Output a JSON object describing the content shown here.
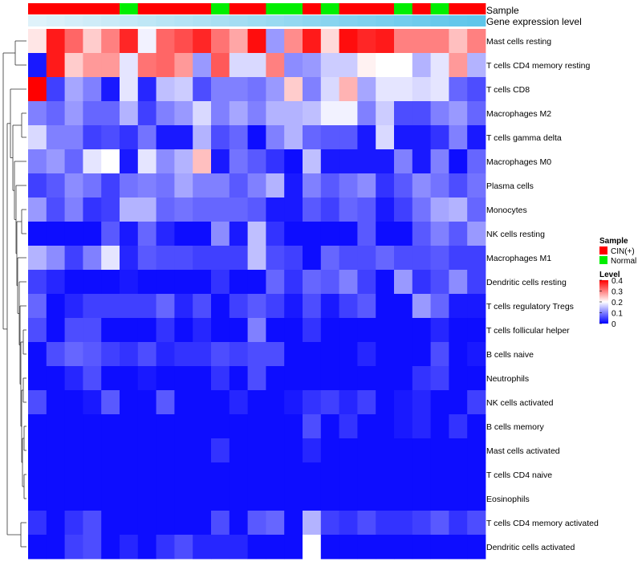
{
  "chart_data": {
    "type": "heatmap",
    "annotation_titles": {
      "sample": "Sample",
      "expression": "Gene expression level"
    },
    "columns": {
      "sample": [
        "CIN(+)",
        "CIN(+)",
        "CIN(+)",
        "CIN(+)",
        "CIN(+)",
        "Normal",
        "CIN(+)",
        "CIN(+)",
        "CIN(+)",
        "CIN(+)",
        "Normal",
        "CIN(+)",
        "CIN(+)",
        "Normal",
        "Normal",
        "CIN(+)",
        "Normal",
        "CIN(+)",
        "CIN(+)",
        "CIN(+)",
        "Normal",
        "CIN(+)",
        "Normal",
        "CIN(+)",
        "CIN(+)"
      ],
      "expression": [
        0.05,
        0.09,
        0.13,
        0.17,
        0.21,
        0.25,
        0.29,
        0.33,
        0.37,
        0.41,
        0.45,
        0.49,
        0.53,
        0.57,
        0.61,
        0.65,
        0.69,
        0.73,
        0.77,
        0.81,
        0.85,
        0.89,
        0.93,
        0.97,
        1.0
      ]
    },
    "rows": [
      "Mast cells resting",
      "T cells CD4 memory resting",
      "T cells CD8",
      "Macrophages M2",
      "T cells gamma delta",
      "Macrophages M0",
      "Plasma cells",
      "Monocytes",
      "NK cells resting",
      "Macrophages M1",
      "Dendritic cells resting",
      "T cells regulatory  Tregs",
      "T cells follicular helper",
      "B cells naive",
      "Neutrophils",
      "NK cells activated",
      "B cells memory",
      "Mast cells activated",
      "T cells CD4 naive",
      "Eosinophils",
      "T cells CD4 memory activated",
      "Dendritic cells activated"
    ],
    "values": [
      [
        0.22,
        0.38,
        0.32,
        0.24,
        0.3,
        0.37,
        0.19,
        0.32,
        0.34,
        0.37,
        0.31,
        0.27,
        0.39,
        0.12,
        0.29,
        0.38,
        0.23,
        0.39,
        0.37,
        0.38,
        0.3,
        0.3,
        0.3,
        0.25,
        0.3
      ],
      [
        0.02,
        0.38,
        0.24,
        0.28,
        0.28,
        0.18,
        0.31,
        0.32,
        0.28,
        0.12,
        0.33,
        0.17,
        0.17,
        0.3,
        0.11,
        0.12,
        0.16,
        0.16,
        0.21,
        0.2,
        0.2,
        0.14,
        0.18,
        0.28,
        0.14
      ],
      [
        0.4,
        0.05,
        0.13,
        0.1,
        0.02,
        0.18,
        0.03,
        0.15,
        0.16,
        0.06,
        0.1,
        0.1,
        0.09,
        0.12,
        0.24,
        0.1,
        0.17,
        0.26,
        0.13,
        0.18,
        0.18,
        0.17,
        0.18,
        0.08,
        0.06
      ],
      [
        0.1,
        0.08,
        0.12,
        0.08,
        0.08,
        0.14,
        0.05,
        0.1,
        0.12,
        0.17,
        0.1,
        0.13,
        0.1,
        0.14,
        0.14,
        0.15,
        0.19,
        0.19,
        0.1,
        0.16,
        0.06,
        0.06,
        0.1,
        0.12,
        0.08
      ],
      [
        0.17,
        0.1,
        0.1,
        0.05,
        0.06,
        0.04,
        0.09,
        0.02,
        0.02,
        0.14,
        0.06,
        0.08,
        0.01,
        0.1,
        0.14,
        0.08,
        0.07,
        0.07,
        0.02,
        0.17,
        0.02,
        0.02,
        0.04,
        0.1,
        0.02
      ],
      [
        0.1,
        0.12,
        0.08,
        0.18,
        0.2,
        0.02,
        0.18,
        0.11,
        0.14,
        0.25,
        0.02,
        0.09,
        0.07,
        0.04,
        0.01,
        0.15,
        0.02,
        0.02,
        0.02,
        0.02,
        0.1,
        0.02,
        0.1,
        0.01,
        0.08
      ],
      [
        0.05,
        0.07,
        0.11,
        0.09,
        0.05,
        0.09,
        0.1,
        0.09,
        0.13,
        0.1,
        0.1,
        0.07,
        0.1,
        0.14,
        0.02,
        0.1,
        0.07,
        0.09,
        0.11,
        0.04,
        0.07,
        0.11,
        0.09,
        0.06,
        0.09
      ],
      [
        0.12,
        0.06,
        0.1,
        0.04,
        0.05,
        0.14,
        0.14,
        0.08,
        0.09,
        0.08,
        0.08,
        0.08,
        0.07,
        0.02,
        0.02,
        0.07,
        0.05,
        0.08,
        0.07,
        0.02,
        0.05,
        0.09,
        0.13,
        0.14,
        0.08
      ],
      [
        0.01,
        0.01,
        0.01,
        0.01,
        0.07,
        0.02,
        0.08,
        0.03,
        0.01,
        0.01,
        0.11,
        0.02,
        0.15,
        0.04,
        0.01,
        0.01,
        0.01,
        0.01,
        0.07,
        0.01,
        0.01,
        0.07,
        0.1,
        0.07,
        0.12
      ],
      [
        0.14,
        0.11,
        0.05,
        0.1,
        0.18,
        0.03,
        0.07,
        0.06,
        0.06,
        0.05,
        0.05,
        0.05,
        0.15,
        0.06,
        0.05,
        0.01,
        0.08,
        0.06,
        0.06,
        0.08,
        0.06,
        0.06,
        0.07,
        0.05,
        0.05
      ],
      [
        0.05,
        0.03,
        0.01,
        0.01,
        0.01,
        0.02,
        0.01,
        0.01,
        0.01,
        0.01,
        0.04,
        0.01,
        0.01,
        0.08,
        0.04,
        0.08,
        0.07,
        0.1,
        0.05,
        0.01,
        0.12,
        0.04,
        0.06,
        0.11,
        0.05
      ],
      [
        0.08,
        0.01,
        0.03,
        0.05,
        0.05,
        0.05,
        0.05,
        0.08,
        0.03,
        0.06,
        0.01,
        0.05,
        0.07,
        0.05,
        0.02,
        0.06,
        0.02,
        0.05,
        0.07,
        0.01,
        0.01,
        0.12,
        0.08,
        0.02,
        0.02
      ],
      [
        0.06,
        0.01,
        0.06,
        0.06,
        0.01,
        0.01,
        0.01,
        0.04,
        0.01,
        0.03,
        0.01,
        0.01,
        0.1,
        0.01,
        0.01,
        0.04,
        0.01,
        0.01,
        0.01,
        0.01,
        0.01,
        0.01,
        0.03,
        0.01,
        0.01
      ],
      [
        0.01,
        0.06,
        0.08,
        0.07,
        0.05,
        0.04,
        0.06,
        0.03,
        0.04,
        0.04,
        0.06,
        0.05,
        0.06,
        0.06,
        0.01,
        0.01,
        0.01,
        0.01,
        0.03,
        0.01,
        0.01,
        0.01,
        0.06,
        0.01,
        0.02
      ],
      [
        0.01,
        0.01,
        0.03,
        0.06,
        0.01,
        0.01,
        0.02,
        0.01,
        0.01,
        0.01,
        0.04,
        0.01,
        0.06,
        0.01,
        0.01,
        0.01,
        0.01,
        0.01,
        0.01,
        0.01,
        0.01,
        0.04,
        0.05,
        0.01,
        0.01
      ],
      [
        0.06,
        0.01,
        0.01,
        0.02,
        0.07,
        0.01,
        0.01,
        0.07,
        0.01,
        0.01,
        0.01,
        0.03,
        0.01,
        0.01,
        0.02,
        0.04,
        0.05,
        0.03,
        0.05,
        0.01,
        0.02,
        0.03,
        0.01,
        0.01,
        0.05
      ],
      [
        0.01,
        0.01,
        0.01,
        0.01,
        0.01,
        0.01,
        0.01,
        0.01,
        0.01,
        0.01,
        0.01,
        0.01,
        0.01,
        0.01,
        0.01,
        0.06,
        0.01,
        0.04,
        0.01,
        0.01,
        0.02,
        0.03,
        0.01,
        0.04,
        0.01
      ],
      [
        0.01,
        0.01,
        0.01,
        0.01,
        0.01,
        0.01,
        0.01,
        0.01,
        0.01,
        0.01,
        0.04,
        0.01,
        0.01,
        0.01,
        0.01,
        0.03,
        0.01,
        0.01,
        0.01,
        0.01,
        0.01,
        0.01,
        0.01,
        0.01,
        0.01
      ],
      [
        0.01,
        0.01,
        0.01,
        0.01,
        0.01,
        0.01,
        0.01,
        0.01,
        0.01,
        0.01,
        0.01,
        0.01,
        0.01,
        0.01,
        0.01,
        0.01,
        0.01,
        0.01,
        0.01,
        0.01,
        0.01,
        0.01,
        0.01,
        0.01,
        0.01
      ],
      [
        0.01,
        0.01,
        0.01,
        0.01,
        0.01,
        0.01,
        0.01,
        0.01,
        0.01,
        0.01,
        0.01,
        0.01,
        0.01,
        0.01,
        0.01,
        0.01,
        0.01,
        0.01,
        0.01,
        0.01,
        0.01,
        0.01,
        0.01,
        0.01,
        0.01
      ],
      [
        0.04,
        0.01,
        0.04,
        0.06,
        0.01,
        0.01,
        0.01,
        0.01,
        0.01,
        0.01,
        0.06,
        0.01,
        0.07,
        0.08,
        0.01,
        0.14,
        0.05,
        0.04,
        0.06,
        0.04,
        0.04,
        0.05,
        0.07,
        0.04,
        0.06
      ],
      [
        0.01,
        0.01,
        0.05,
        0.06,
        0.01,
        0.03,
        0.01,
        0.04,
        0.06,
        0.03,
        0.03,
        0.03,
        0.01,
        0.01,
        0.01,
        0.2,
        0.01,
        0.01,
        0.01,
        0.01,
        0.01,
        0.01,
        0.01,
        0.01,
        0.01
      ]
    ],
    "legend": {
      "sample_title": "Sample",
      "sample_entries": [
        {
          "label": "CIN(+)",
          "color": "#ff0000"
        },
        {
          "label": "Normal",
          "color": "#00ee00"
        }
      ],
      "level_title": "Level",
      "level_ticks": [
        "0.4",
        "0.3",
        "0.2",
        "0.1",
        "0"
      ],
      "level_range": [
        0,
        0.4
      ],
      "placement": "right"
    },
    "colors": {
      "low": "#0000ff",
      "mid": "#ffffff",
      "high": "#ff0000",
      "expr_low": "#e6f4fb",
      "expr_high": "#5fc6ea"
    },
    "dendrogram": true
  }
}
